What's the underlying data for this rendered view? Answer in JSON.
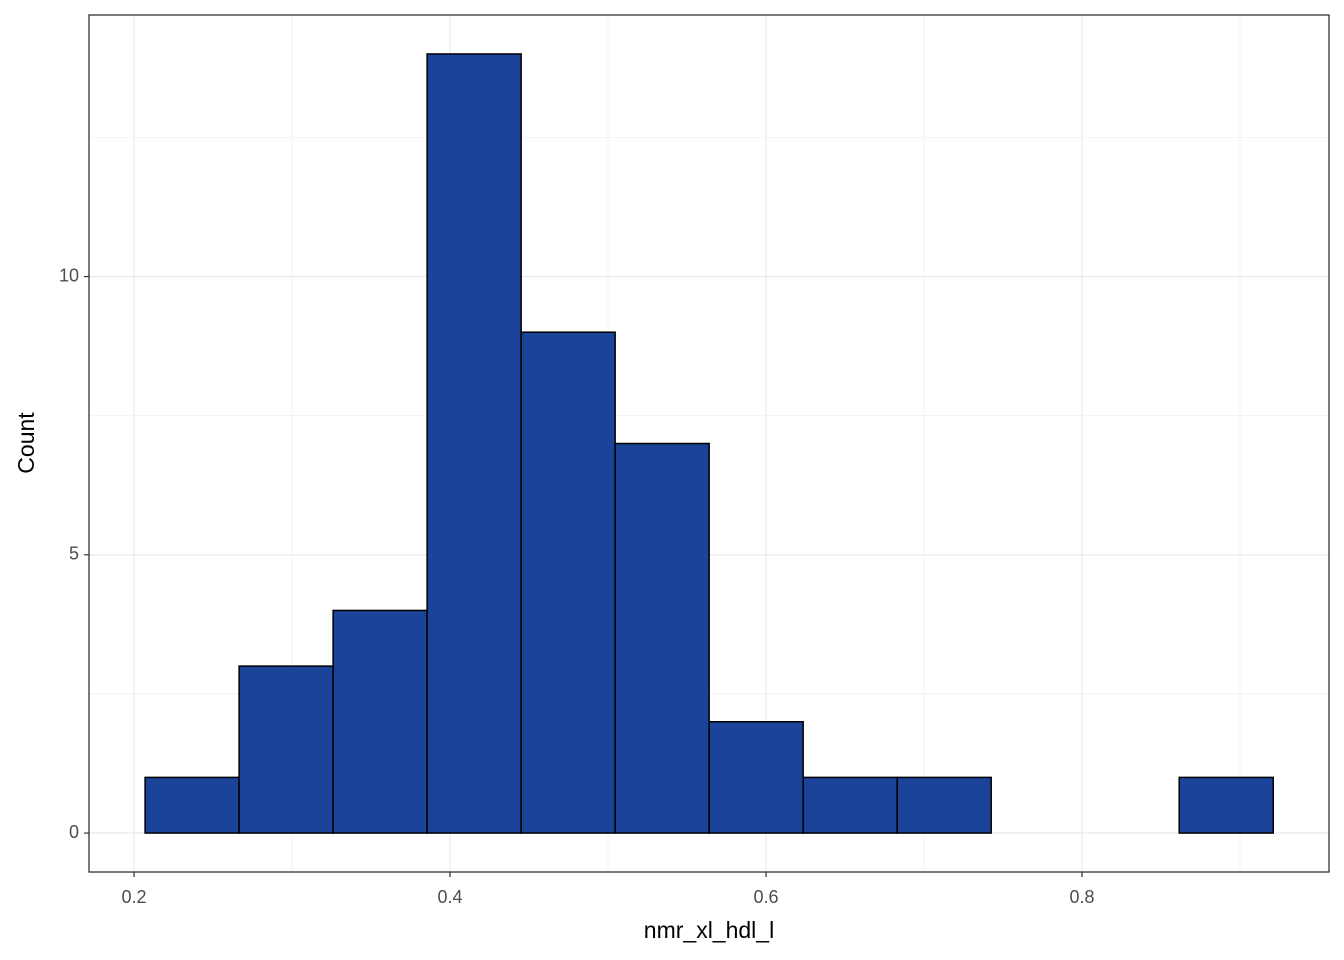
{
  "chart_data": {
    "type": "histogram",
    "x_label": "nmr_xl_hdl_l",
    "y_label": "Count",
    "bins": [
      0.207,
      0.2665,
      0.326,
      0.3855,
      0.445,
      0.5045,
      0.564,
      0.6235,
      0.683,
      0.7425,
      0.802,
      0.8615,
      0.921
    ],
    "counts": [
      1,
      3,
      4,
      14,
      9,
      7,
      2,
      1,
      1,
      0,
      0,
      1
    ],
    "color": "#1a4399",
    "xlim": [
      0.1715,
      0.9563
    ],
    "xticks": [
      0.2,
      0.4,
      0.6,
      0.8
    ],
    "ylim": [
      -0.7,
      14.7
    ],
    "yticks": [
      0,
      5,
      10
    ],
    "grid": true,
    "minor_grid": true
  }
}
